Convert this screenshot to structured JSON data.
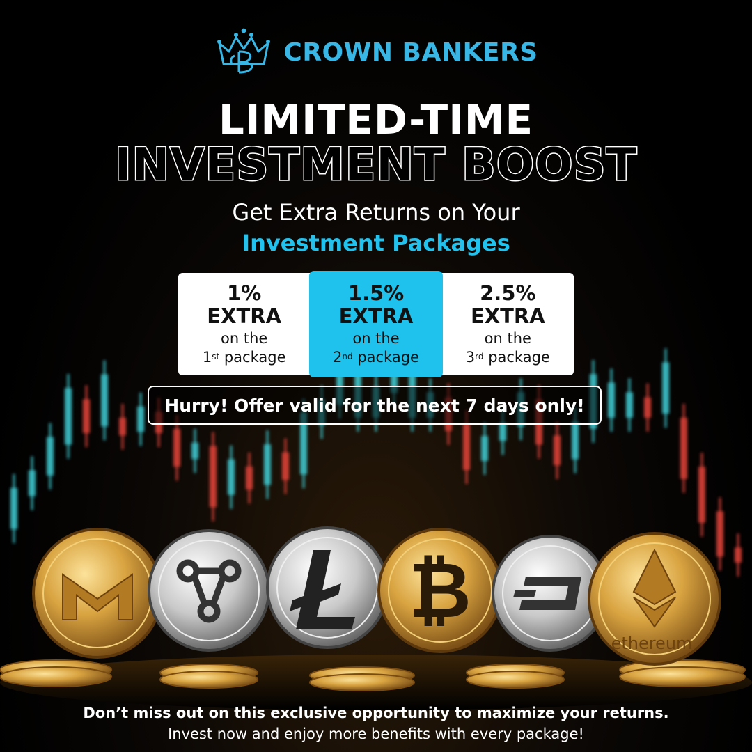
{
  "brand": {
    "name": "CROWN BANKERS",
    "logo_icon": "crown-cb-monogram-icon",
    "color": "#38b7e6"
  },
  "headline": {
    "line1": "LIMITED-TIME",
    "line2": "INVESTMENT BOOST"
  },
  "subheadline": {
    "line1": "Get Extra Returns on Your",
    "line2": "Investment Packages",
    "accent_color": "#22c2ef"
  },
  "offers": [
    {
      "percent": "1%",
      "extra": "EXTRA",
      "on": "on the",
      "ordinal": "1",
      "suffix": "st",
      "package": "package",
      "highlighted": false
    },
    {
      "percent": "1.5%",
      "extra": "EXTRA",
      "on": "on the",
      "ordinal": "2",
      "suffix": "nd",
      "package": "package",
      "highlighted": true
    },
    {
      "percent": "2.5%",
      "extra": "EXTRA",
      "on": "on the",
      "ordinal": "3",
      "suffix": "rd",
      "package": "package",
      "highlighted": false
    }
  ],
  "hurry_text": "Hurry! Offer valid for the next 7 days only!",
  "coins": [
    {
      "name": "monero-coin",
      "icon": "monero-icon"
    },
    {
      "name": "ripple-coin",
      "icon": "ripple-icon"
    },
    {
      "name": "litecoin-coin",
      "icon": "litecoin-icon"
    },
    {
      "name": "bitcoin-coin",
      "icon": "bitcoin-icon"
    },
    {
      "name": "dash-coin",
      "icon": "dash-icon"
    },
    {
      "name": "ethereum-coin",
      "icon": "ethereum-icon",
      "label": "ethereum"
    }
  ],
  "footer": {
    "line1": "Don’t miss out on this exclusive opportunity to maximize your returns.",
    "line2": "Invest now and enjoy more benefits with every package!"
  },
  "colors": {
    "candle_up": "#3fd0d8",
    "candle_down": "#e8443a",
    "gold": "#d9a441"
  }
}
